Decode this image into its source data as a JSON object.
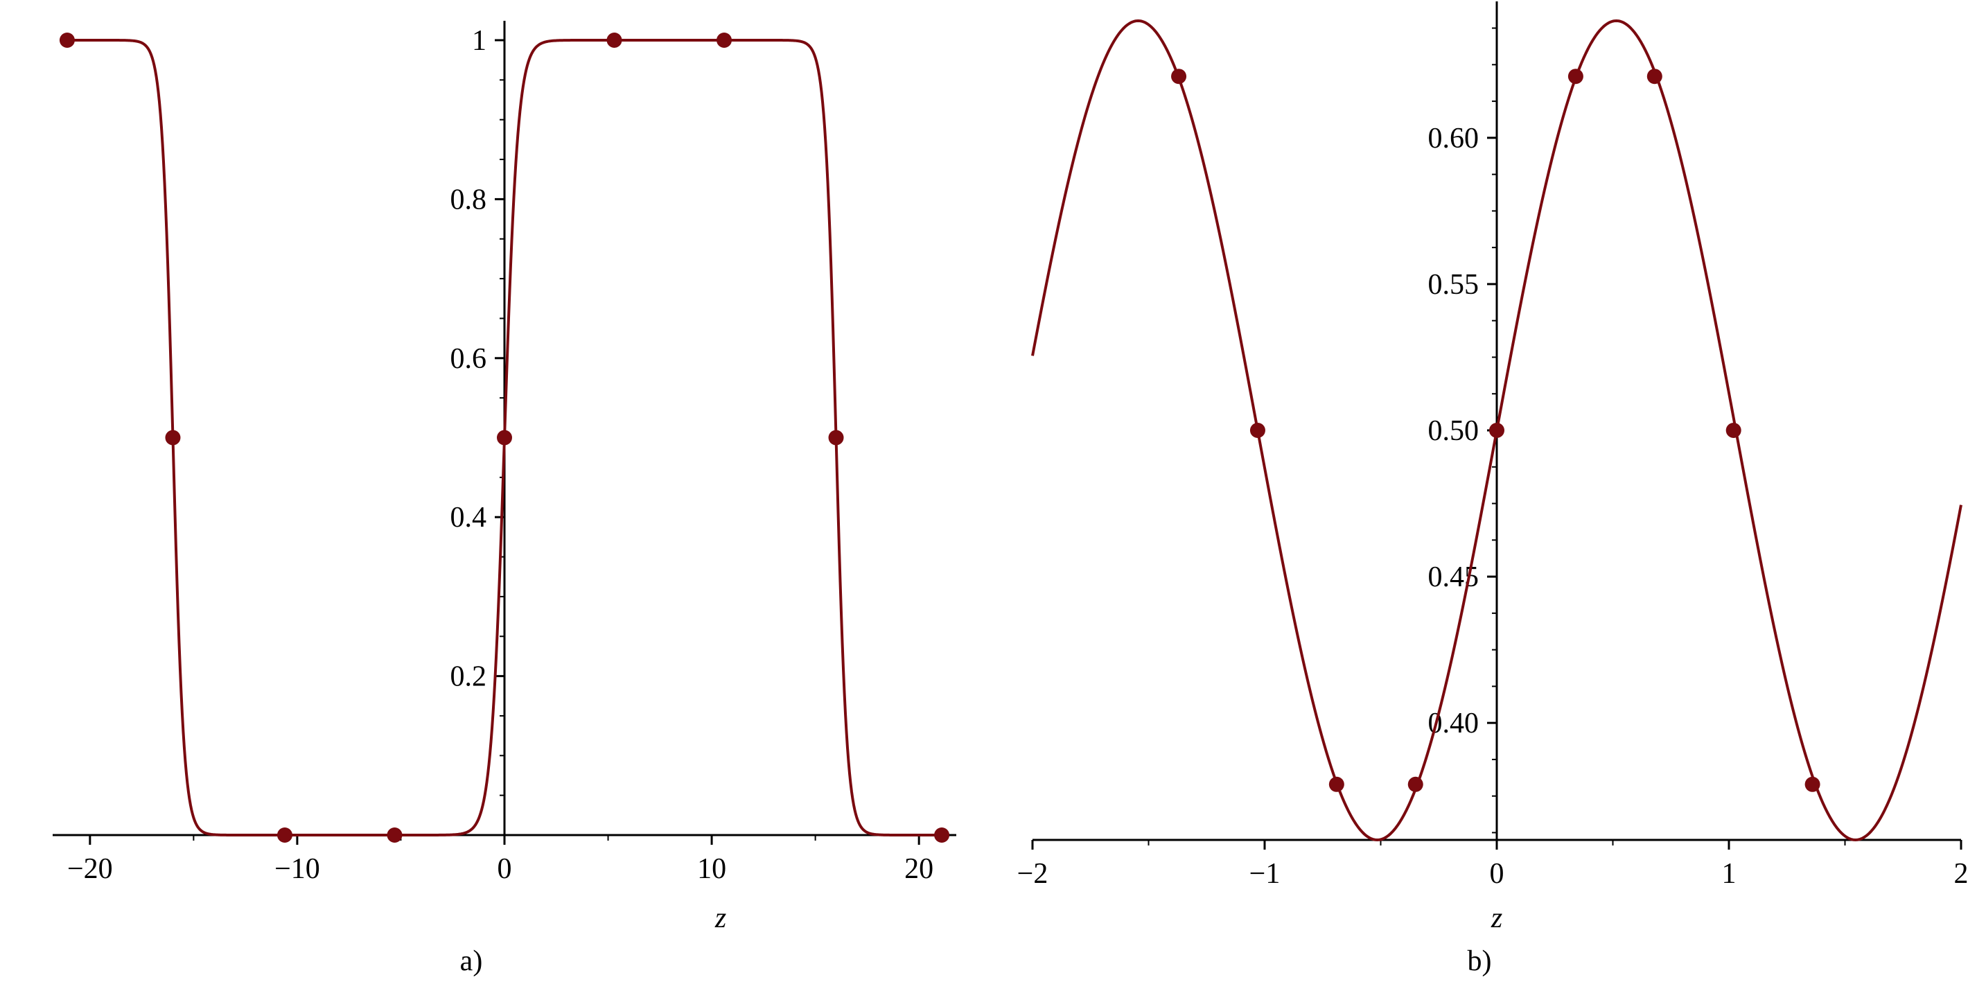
{
  "colors": {
    "curve": "#7a0a0f",
    "marker": "#7a0a0f",
    "axis": "#000000",
    "background": "#ffffff"
  },
  "chart_data": [
    {
      "type": "line",
      "panel_label": "a)",
      "xlabel": "z",
      "ylabel": "",
      "xlim": [
        -21.8,
        21.8
      ],
      "ylim": [
        0,
        1.0
      ],
      "xticks": [
        -20,
        -10,
        0,
        10,
        20
      ],
      "xtick_labels": [
        "−20",
        "−10",
        "0",
        "10",
        "20"
      ],
      "yticks": [
        0.2,
        0.4,
        0.6,
        0.8,
        1.0
      ],
      "ytick_labels": [
        "0.2",
        "0.4",
        "0.6",
        "0.8",
        "1"
      ],
      "grid": false,
      "curve": {
        "formula": "0.5*(tanh(0.6*(z+16)) - tanh(0.6*(z-16)))*... approximated as kink–antikink profile",
        "sample_points": [
          [
            -20.8,
            1.0
          ],
          [
            -19.0,
            0.999
          ],
          [
            -17.5,
            0.97
          ],
          [
            -16.8,
            0.85
          ],
          [
            -16.4,
            0.7
          ],
          [
            -16.0,
            0.5
          ],
          [
            -15.6,
            0.3
          ],
          [
            -15.2,
            0.15
          ],
          [
            -14.5,
            0.04
          ],
          [
            -13.5,
            0.007
          ],
          [
            -12,
            0.0
          ],
          [
            -10,
            0.0
          ],
          [
            -5,
            0.001
          ],
          [
            -3.5,
            0.01
          ],
          [
            -2.5,
            0.05
          ],
          [
            -1.5,
            0.16
          ],
          [
            -1.0,
            0.26
          ],
          [
            -0.5,
            0.38
          ],
          [
            0,
            0.5
          ],
          [
            0.5,
            0.62
          ],
          [
            1.0,
            0.74
          ],
          [
            1.5,
            0.84
          ],
          [
            2.5,
            0.95
          ],
          [
            3.5,
            0.99
          ],
          [
            5,
            0.999
          ],
          [
            10,
            1.0
          ],
          [
            12,
            0.999
          ],
          [
            13.5,
            0.993
          ],
          [
            14.5,
            0.96
          ],
          [
            15.2,
            0.85
          ],
          [
            15.6,
            0.7
          ],
          [
            16.0,
            0.5
          ],
          [
            16.4,
            0.3
          ],
          [
            16.8,
            0.15
          ],
          [
            17.5,
            0.03
          ],
          [
            19.0,
            0.002
          ],
          [
            20.8,
            0.0
          ]
        ]
      },
      "points": [
        {
          "x": -21.1,
          "y": 1.0
        },
        {
          "x": -16.0,
          "y": 0.5
        },
        {
          "x": -10.6,
          "y": 0.0
        },
        {
          "x": -5.3,
          "y": 0.0
        },
        {
          "x": 0.0,
          "y": 0.5
        },
        {
          "x": 5.3,
          "y": 1.0
        },
        {
          "x": 10.6,
          "y": 1.0
        },
        {
          "x": 16.0,
          "y": 0.5
        },
        {
          "x": 21.1,
          "y": 0.0
        }
      ]
    },
    {
      "type": "line",
      "panel_label": "b)",
      "xlabel": "z",
      "ylabel": "",
      "xlim": [
        -2,
        2
      ],
      "ylim": [
        0.36,
        0.64
      ],
      "xticks": [
        -2,
        -1,
        0,
        1,
        2
      ],
      "xtick_labels": [
        "−2",
        "−1",
        "0",
        "1",
        "2"
      ],
      "yticks": [
        0.4,
        0.45,
        0.5,
        0.55,
        0.6
      ],
      "ytick_labels": [
        "0.40",
        "0.45",
        "0.50",
        "0.55",
        "0.60"
      ],
      "grid": false,
      "curve": {
        "formula": "0.5 + 0.14*sin(3.05*z)",
        "amplitude": 0.14,
        "center": 0.5,
        "angular_frequency": 3.05,
        "x_range": [
          -2,
          2
        ]
      },
      "points": [
        {
          "x": -1.37,
          "y": 0.621
        },
        {
          "x": -1.03,
          "y": 0.5
        },
        {
          "x": -0.69,
          "y": 0.379
        },
        {
          "x": -0.35,
          "y": 0.379
        },
        {
          "x": 0.0,
          "y": 0.5
        },
        {
          "x": 0.34,
          "y": 0.621
        },
        {
          "x": 0.68,
          "y": 0.621
        },
        {
          "x": 1.02,
          "y": 0.5
        },
        {
          "x": 1.36,
          "y": 0.379
        }
      ]
    }
  ]
}
